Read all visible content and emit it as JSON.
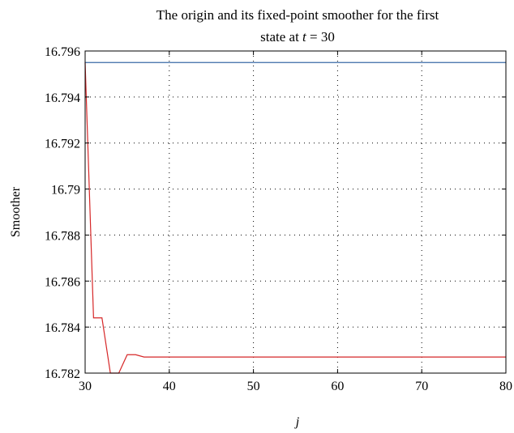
{
  "chart_data": {
    "type": "line",
    "title_line1": "The origin and its fixed-point smoother for the first",
    "title_line2_prefix": "state at ",
    "title_line2_var": "t",
    "title_line2_suffix": " = 30",
    "xlabel": "j",
    "ylabel": "Smoother",
    "xlim": [
      30,
      80
    ],
    "ylim": [
      16.782,
      16.796
    ],
    "x_ticks": [
      "30",
      "40",
      "50",
      "60",
      "70",
      "80"
    ],
    "x_tick_values": [
      30,
      40,
      50,
      60,
      70,
      80
    ],
    "y_ticks": [
      "16.782",
      "16.784",
      "16.786",
      "16.788",
      "16.79",
      "16.792",
      "16.794",
      "16.796"
    ],
    "y_tick_values": [
      16.782,
      16.784,
      16.786,
      16.788,
      16.79,
      16.792,
      16.794,
      16.796
    ],
    "grid": true,
    "series": [
      {
        "color": "#3a6aa6",
        "x": [
          30,
          80
        ],
        "y": [
          16.7955,
          16.7955
        ]
      },
      {
        "color": "#d62728",
        "x": [
          30,
          31,
          32,
          33,
          34,
          35,
          36,
          37,
          38,
          40,
          45,
          50,
          60,
          70,
          80
        ],
        "y": [
          16.7955,
          16.7844,
          16.7844,
          16.782,
          16.782,
          16.7828,
          16.7828,
          16.7827,
          16.7827,
          16.7827,
          16.7827,
          16.7827,
          16.7827,
          16.7827,
          16.7827
        ]
      }
    ]
  }
}
